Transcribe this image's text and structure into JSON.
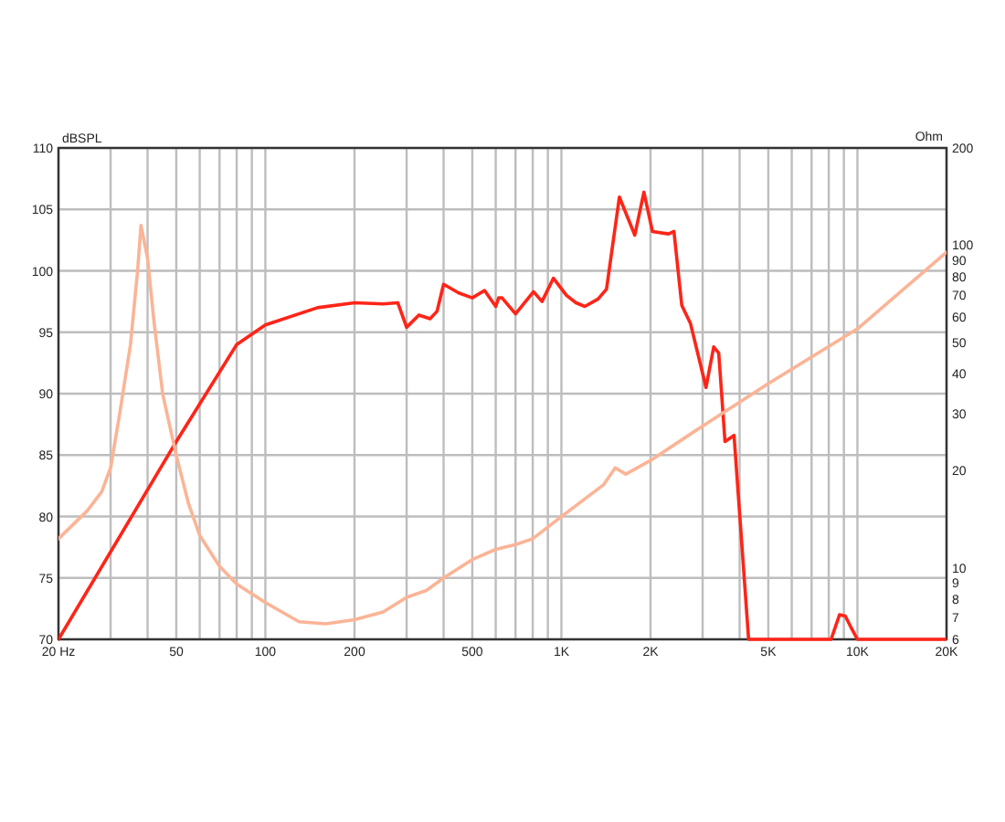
{
  "chart_data": {
    "type": "line",
    "ylabel": "Ohm",
    "y2label": "dBSPL",
    "log": "xy",
    "grid": true,
    "marker": "none",
    "line_style": "solid",
    "xlim": [
      20,
      20000
    ],
    "xticks": [
      {
        "value": 20,
        "label": "20 Hz"
      },
      {
        "value": 30,
        "label": null
      },
      {
        "value": 40,
        "label": null
      },
      50,
      {
        "value": 60,
        "label": null
      },
      {
        "value": 70,
        "label": null
      },
      {
        "value": 80,
        "label": null
      },
      {
        "value": 90,
        "label": null
      },
      100,
      200,
      {
        "value": 300,
        "label": null
      },
      {
        "value": 400,
        "label": null
      },
      500,
      {
        "value": 600,
        "label": null
      },
      {
        "value": 700,
        "label": null
      },
      {
        "value": 800,
        "label": null
      },
      {
        "value": 900,
        "label": null
      },
      {
        "value": 1000,
        "label": "1K"
      },
      {
        "value": 2000,
        "label": "2K"
      },
      {
        "value": 3000,
        "label": null
      },
      {
        "value": 4000,
        "label": null
      },
      {
        "value": 5000,
        "label": "5K"
      },
      {
        "value": 6000,
        "label": null
      },
      {
        "value": 7000,
        "label": null
      },
      {
        "value": 8000,
        "label": null
      },
      {
        "value": 9000,
        "label": null
      },
      {
        "value": 10000,
        "label": "10K"
      },
      {
        "value": 20000,
        "label": "20K"
      }
    ],
    "y2lim": [
      70,
      110
    ],
    "y2ticks": [
      70,
      75,
      80,
      85,
      90,
      95,
      100,
      105,
      110
    ],
    "ylim": [
      6,
      200
    ],
    "yticks": [
      6,
      7,
      8,
      9,
      10,
      20,
      30,
      40,
      50,
      60,
      70,
      80,
      90,
      100,
      200
    ],
    "series": [
      {
        "color": "#ff2418",
        "axis": "y2",
        "x": [
          20,
          50,
          80,
          100,
          150,
          200,
          250,
          280,
          300,
          330,
          360,
          380,
          400,
          450,
          500,
          550,
          600,
          614,
          630,
          700,
          805,
          860,
          940,
          1040,
          1120,
          1200,
          1330,
          1420,
          1570,
          1770,
          1900,
          2030,
          2300,
          2400,
          2550,
          2730,
          3080,
          3270,
          3400,
          3570,
          3830,
          4290,
          8150,
          8700,
          9100,
          9500,
          10000,
          20000
        ],
        "values": [
          70,
          86.1,
          94,
          95.6,
          97,
          97.4,
          97.3,
          97.4,
          95.4,
          96.4,
          96.1,
          96.7,
          98.9,
          98.2,
          97.8,
          98.4,
          97.1,
          97.8,
          97.8,
          96.5,
          98.3,
          97.5,
          99.4,
          98,
          97.4,
          97.1,
          97.7,
          98.5,
          106,
          102.9,
          106.4,
          103.2,
          103,
          103.2,
          97.2,
          95.7,
          90.5,
          93.8,
          93.3,
          86.1,
          86.6,
          70,
          70,
          72,
          71.9,
          71,
          70,
          70
        ]
      },
      {
        "color": "#fbb496",
        "x": [
          20,
          25,
          28,
          30,
          32,
          35,
          37,
          38,
          40,
          42,
          45,
          50,
          55,
          60,
          70,
          80,
          100,
          130,
          160,
          200,
          250,
          300,
          350,
          400,
          500,
          600,
          700,
          800,
          1000,
          1390,
          1520,
          1650,
          2000,
          3000,
          5000,
          10000,
          20000
        ],
        "values": [
          12.3,
          15,
          17.2,
          20.4,
          29,
          49,
          83,
          115,
          91,
          58.4,
          34.5,
          22.3,
          15.8,
          12.6,
          10.1,
          8.9,
          7.8,
          6.8,
          6.7,
          6.9,
          7.3,
          8.1,
          8.5,
          9.3,
          10.6,
          11.4,
          11.8,
          12.3,
          14.4,
          18.1,
          20.4,
          19.5,
          21.5,
          27.5,
          37.2,
          55,
          95
        ]
      }
    ]
  }
}
